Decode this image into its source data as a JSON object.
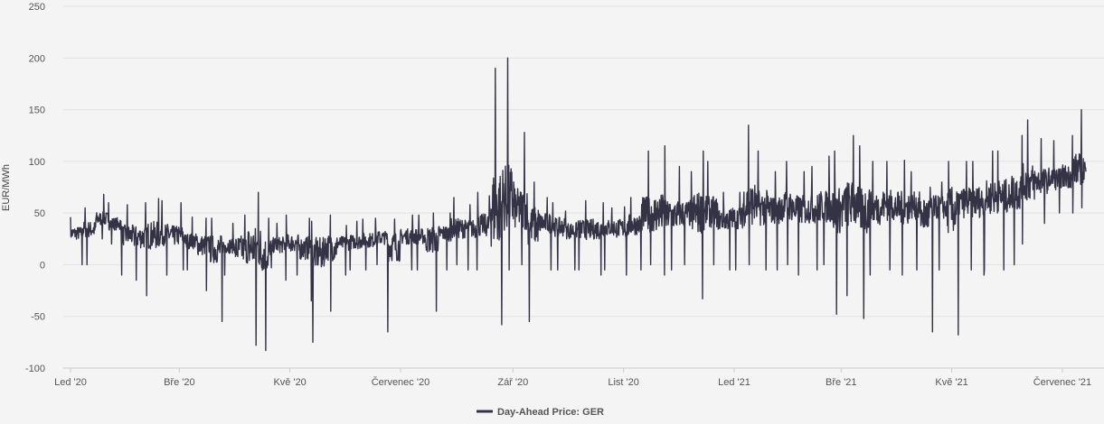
{
  "chart_data": {
    "type": "line",
    "title": "",
    "ylabel": "EUR/MWh",
    "xlabel": "",
    "ylim": [
      -100,
      250
    ],
    "y_ticks": [
      250,
      200,
      150,
      100,
      50,
      0,
      -50,
      -100
    ],
    "x_ticks": [
      "Led '20",
      "Bře '20",
      "Kvě '20",
      "Červenec '20",
      "Zář '20",
      "List '20",
      "Led '21",
      "Bře '21",
      "Kvě '21",
      "Červenec '21"
    ],
    "x_tick_dates": [
      "2020-01-01",
      "2020-03-01",
      "2020-05-01",
      "2020-07-01",
      "2020-09-01",
      "2020-11-01",
      "2021-01-01",
      "2021-03-01",
      "2021-05-01",
      "2021-07-01"
    ],
    "x_range": [
      "2020-01-01",
      "2021-07-14"
    ],
    "grid": "horizontal",
    "legend_position": "bottom-center",
    "colors": {
      "series": "#333345",
      "grid": "#e2e2e2",
      "axis": "#cccccc",
      "background": "#f4f4f4"
    },
    "series": [
      {
        "name": "Day-Ahead Price: GER",
        "x": [
          "2020-01-01",
          "2020-01-08",
          "2020-01-15",
          "2020-01-22",
          "2020-01-29",
          "2020-02-05",
          "2020-02-12",
          "2020-02-19",
          "2020-02-26",
          "2020-03-04",
          "2020-03-11",
          "2020-03-18",
          "2020-03-25",
          "2020-04-01",
          "2020-04-08",
          "2020-04-15",
          "2020-04-22",
          "2020-04-29",
          "2020-05-06",
          "2020-05-13",
          "2020-05-20",
          "2020-05-27",
          "2020-06-03",
          "2020-06-10",
          "2020-06-17",
          "2020-06-24",
          "2020-07-01",
          "2020-07-08",
          "2020-07-15",
          "2020-07-22",
          "2020-07-29",
          "2020-08-05",
          "2020-08-12",
          "2020-08-19",
          "2020-08-26",
          "2020-09-02",
          "2020-09-09",
          "2020-09-16",
          "2020-09-23",
          "2020-09-30",
          "2020-10-07",
          "2020-10-14",
          "2020-10-21",
          "2020-10-28",
          "2020-11-04",
          "2020-11-11",
          "2020-11-18",
          "2020-11-25",
          "2020-12-02",
          "2020-12-09",
          "2020-12-16",
          "2020-12-23",
          "2020-12-30",
          "2021-01-06",
          "2021-01-13",
          "2021-01-20",
          "2021-01-27",
          "2021-02-03",
          "2021-02-10",
          "2021-02-17",
          "2021-02-24",
          "2021-03-03",
          "2021-03-10",
          "2021-03-17",
          "2021-03-24",
          "2021-03-31",
          "2021-04-07",
          "2021-04-14",
          "2021-04-21",
          "2021-04-28",
          "2021-05-05",
          "2021-05-12",
          "2021-05-19",
          "2021-05-26",
          "2021-06-02",
          "2021-06-09",
          "2021-06-16",
          "2021-06-23",
          "2021-06-30",
          "2021-07-07",
          "2021-07-14"
        ],
        "y_min": [
          0,
          0,
          25,
          20,
          -10,
          -15,
          -30,
          -10,
          -5,
          -5,
          -25,
          -55,
          -10,
          -50,
          -78,
          -83,
          -15,
          -10,
          -35,
          -75,
          -45,
          -10,
          -5,
          -5,
          0,
          -65,
          -5,
          -5,
          -45,
          -5,
          0,
          -5,
          -5,
          -58,
          -5,
          0,
          -55,
          -5,
          -5,
          -5,
          -5,
          -10,
          -5,
          -10,
          -5,
          0,
          -10,
          -5,
          0,
          -33,
          0,
          -5,
          -5,
          0,
          -5,
          -5,
          0,
          -10,
          -5,
          0,
          -48,
          -30,
          -52,
          -10,
          -5,
          -10,
          -5,
          -65,
          -5,
          -68,
          -5,
          -10,
          -5,
          -5,
          0,
          20,
          40,
          50,
          50,
          55,
          55
        ],
        "y_max": [
          46,
          55,
          68,
          60,
          58,
          60,
          64,
          62,
          60,
          46,
          45,
          45,
          40,
          48,
          70,
          45,
          40,
          48,
          45,
          42,
          48,
          38,
          42,
          44,
          45,
          44,
          48,
          48,
          50,
          50,
          65,
          58,
          70,
          190,
          200,
          128,
          80,
          65,
          60,
          52,
          62,
          60,
          55,
          56,
          65,
          110,
          115,
          95,
          90,
          110,
          100,
          70,
          70,
          135,
          110,
          90,
          100,
          90,
          95,
          105,
          110,
          125,
          115,
          100,
          100,
          101,
          90,
          75,
          80,
          100,
          100,
          100,
          110,
          110,
          125,
          140,
          122,
          120,
          125,
          150,
          103
        ],
        "y_typical": [
          32,
          35,
          42,
          38,
          28,
          26,
          30,
          28,
          26,
          22,
          20,
          20,
          18,
          18,
          20,
          18,
          20,
          20,
          18,
          18,
          20,
          22,
          22,
          24,
          26,
          26,
          28,
          28,
          30,
          32,
          34,
          36,
          38,
          40,
          42,
          45,
          44,
          42,
          38,
          35,
          34,
          36,
          38,
          38,
          40,
          42,
          44,
          46,
          48,
          50,
          48,
          46,
          48,
          50,
          52,
          54,
          56,
          55,
          55,
          54,
          56,
          58,
          56,
          55,
          58,
          55,
          60,
          62,
          60,
          62,
          62,
          64,
          66,
          68,
          70,
          75,
          78,
          80,
          82,
          85,
          90
        ]
      }
    ]
  }
}
